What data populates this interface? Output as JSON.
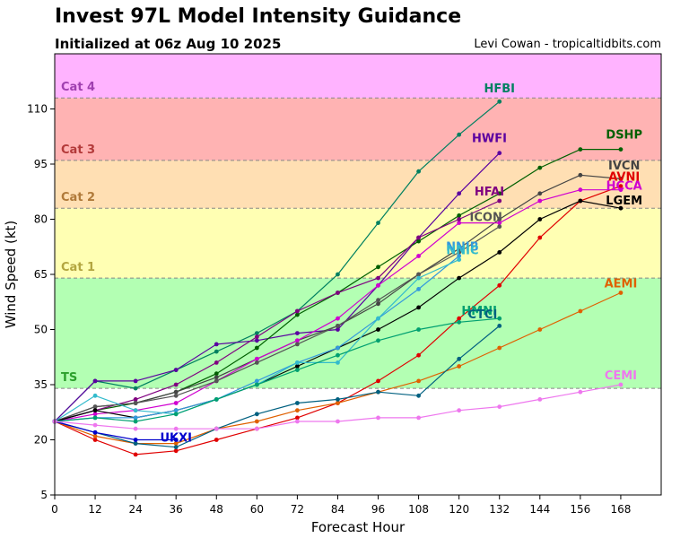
{
  "header": {
    "title": "Invest 97L Model Intensity Guidance",
    "subtitle": "Initialized at 06z Aug 10 2025",
    "credit": "Levi Cowan - tropicaltidbits.com"
  },
  "chart_data": {
    "type": "line",
    "title": "Invest 97L Model Intensity Guidance",
    "subtitle": "Initialized at 06z Aug 10 2025",
    "xlabel": "Forecast Hour",
    "ylabel": "Wind Speed (kt)",
    "xlim": [
      0,
      180
    ],
    "ylim": [
      5,
      125
    ],
    "xticks": [
      0,
      12,
      24,
      36,
      48,
      60,
      72,
      84,
      96,
      108,
      120,
      132,
      144,
      156,
      168
    ],
    "yticks": [
      5,
      20,
      35,
      50,
      65,
      80,
      95,
      110
    ],
    "grid": false,
    "legend": "none",
    "bands": [
      {
        "label": "TS",
        "from": 34,
        "to": 64,
        "fill": "#b3ffb3",
        "label_color": "#2ca02c"
      },
      {
        "label": "Cat 1",
        "from": 64,
        "to": 83,
        "fill": "#ffffb3",
        "label_color": "#b3a640"
      },
      {
        "label": "Cat 2",
        "from": 83,
        "to": 96,
        "fill": "#ffdfb3",
        "label_color": "#b07a3a"
      },
      {
        "label": "Cat 3",
        "from": 96,
        "to": 113,
        "fill": "#ffb3b3",
        "label_color": "#b33a3a"
      },
      {
        "label": "Cat 4",
        "from": 113,
        "to": 125,
        "fill": "#ffb3ff",
        "label_color": "#a040b0"
      }
    ],
    "series": [
      {
        "name": "HFBI",
        "color": "#008060",
        "x": [
          0,
          12,
          24,
          36,
          48,
          60,
          72,
          84,
          96,
          108,
          120,
          132
        ],
        "y": [
          25,
          36,
          34,
          39,
          44,
          49,
          55,
          65,
          79,
          93,
          103,
          112
        ]
      },
      {
        "name": "HWFI",
        "color": "#5a00a0",
        "x": [
          0,
          12,
          24,
          36,
          48,
          60,
          72,
          84,
          96,
          108,
          120,
          132
        ],
        "y": [
          25,
          36,
          36,
          39,
          46,
          47,
          49,
          50,
          62,
          75,
          87,
          98
        ]
      },
      {
        "name": "DSHP",
        "color": "#006000",
        "x": [
          0,
          12,
          24,
          36,
          48,
          60,
          72,
          84,
          96,
          108,
          120,
          132,
          144,
          156,
          168
        ],
        "y": [
          25,
          28,
          30,
          33,
          38,
          45,
          54,
          60,
          67,
          74,
          81,
          87,
          94,
          99,
          99
        ]
      },
      {
        "name": "IVCN",
        "color": "#444444",
        "x": [
          0,
          12,
          24,
          36,
          48,
          60,
          72,
          84,
          96,
          108,
          120,
          132,
          144,
          156,
          168
        ],
        "y": [
          25,
          29,
          30,
          33,
          37,
          42,
          47,
          51,
          57,
          65,
          72,
          80,
          87,
          92,
          91
        ]
      },
      {
        "name": "AVNI",
        "color": "#e00000",
        "x": [
          0,
          12,
          24,
          36,
          48,
          60,
          72,
          84,
          96,
          108,
          120,
          132,
          144,
          156,
          168
        ],
        "y": [
          25,
          20,
          16,
          17,
          20,
          23,
          26,
          30,
          36,
          43,
          53,
          62,
          75,
          85,
          89
        ]
      },
      {
        "name": "HCCA",
        "color": "#d000d0",
        "x": [
          0,
          12,
          24,
          36,
          48,
          60,
          72,
          84,
          96,
          108,
          120,
          132,
          144,
          156,
          168
        ],
        "y": [
          25,
          27,
          28,
          30,
          36,
          42,
          47,
          53,
          62,
          70,
          79,
          79,
          85,
          88,
          88
        ]
      },
      {
        "name": "HFAI",
        "color": "#800080",
        "x": [
          0,
          12,
          24,
          36,
          48,
          60,
          72,
          84,
          96,
          108,
          120,
          132
        ],
        "y": [
          25,
          28,
          31,
          35,
          41,
          48,
          55,
          60,
          64,
          75,
          80,
          85
        ]
      },
      {
        "name": "ICON",
        "color": "#555555",
        "x": [
          0,
          12,
          24,
          36,
          48,
          60,
          72,
          84,
          96,
          108,
          120,
          132
        ],
        "y": [
          25,
          29,
          30,
          32,
          36,
          41,
          46,
          51,
          58,
          65,
          71,
          78
        ]
      },
      {
        "name": "LGEM",
        "color": "#000000",
        "x": [
          0,
          12,
          24,
          36,
          48,
          60,
          72,
          84,
          96,
          108,
          120,
          132,
          144,
          156,
          168
        ],
        "y": [
          25,
          28,
          26,
          28,
          31,
          35,
          40,
          45,
          50,
          56,
          64,
          71,
          80,
          85,
          83
        ]
      },
      {
        "name": "NNIB",
        "color": "#3399dd",
        "x": [
          0,
          12,
          24,
          36,
          48,
          60,
          72,
          84,
          96,
          108,
          120
        ],
        "y": [
          25,
          26,
          26,
          28,
          31,
          36,
          41,
          45,
          53,
          61,
          70
        ]
      },
      {
        "name": "NNIC",
        "color": "#33bbcc",
        "x": [
          0,
          12,
          24,
          36,
          48,
          60,
          72,
          84,
          96,
          108,
          120
        ],
        "y": [
          25,
          32,
          28,
          27,
          31,
          35,
          41,
          41,
          53,
          64,
          69
        ]
      },
      {
        "name": "AEMI",
        "color": "#e06000",
        "x": [
          0,
          12,
          24,
          36,
          48,
          60,
          72,
          84,
          96,
          108,
          120,
          132,
          144,
          156,
          168
        ],
        "y": [
          25,
          21,
          19,
          19,
          23,
          25,
          28,
          30,
          33,
          36,
          40,
          45,
          50,
          55,
          60
        ]
      },
      {
        "name": "HMNI",
        "color": "#00a070",
        "x": [
          0,
          12,
          24,
          36,
          48,
          60,
          72,
          84,
          96,
          108,
          120,
          132
        ],
        "y": [
          25,
          26,
          25,
          27,
          31,
          35,
          39,
          43,
          47,
          50,
          52,
          53
        ]
      },
      {
        "name": "CTCI",
        "color": "#006080",
        "x": [
          0,
          12,
          24,
          36,
          48,
          60,
          72,
          84,
          96,
          108,
          120,
          132
        ],
        "y": [
          25,
          22,
          19,
          18,
          23,
          27,
          30,
          31,
          33,
          32,
          42,
          51
        ]
      },
      {
        "name": "UKXI",
        "color": "#0000cc",
        "x": [
          0,
          12,
          24,
          36
        ],
        "y": [
          25,
          22,
          20,
          20
        ]
      },
      {
        "name": "CEMI",
        "color": "#ee77ee",
        "x": [
          0,
          12,
          24,
          36,
          48,
          60,
          72,
          84,
          96,
          108,
          120,
          132,
          144,
          156,
          168
        ],
        "y": [
          25,
          24,
          23,
          23,
          23,
          23,
          25,
          25,
          26,
          26,
          28,
          29,
          31,
          33,
          35
        ]
      }
    ],
    "label_positions_hour_kt": [
      {
        "name": "HFBI",
        "x": 132,
        "y": 114.5
      },
      {
        "name": "HWFI",
        "x": 129,
        "y": 101
      },
      {
        "name": "DSHP",
        "x": 169,
        "y": 102
      },
      {
        "name": "IVCN",
        "x": 169,
        "y": 93.5
      },
      {
        "name": "AVNI",
        "x": 169,
        "y": 90.5
      },
      {
        "name": "HCCA",
        "x": 169,
        "y": 88
      },
      {
        "name": "HFAI",
        "x": 129,
        "y": 86.5
      },
      {
        "name": "ICON",
        "x": 128,
        "y": 79.5
      },
      {
        "name": "LGEM",
        "x": 169,
        "y": 84
      },
      {
        "name": "NNIB",
        "x": 121,
        "y": 71.5
      },
      {
        "name": "NNIC",
        "x": 121,
        "y": 70.5
      },
      {
        "name": "AEMI",
        "x": 168,
        "y": 61.5
      },
      {
        "name": "HMNI",
        "x": 126,
        "y": 54
      },
      {
        "name": "CTCI",
        "x": 127,
        "y": 53
      },
      {
        "name": "UKXI",
        "x": 36,
        "y": 19.5
      },
      {
        "name": "CEMI",
        "x": 168,
        "y": 36.5
      }
    ]
  }
}
